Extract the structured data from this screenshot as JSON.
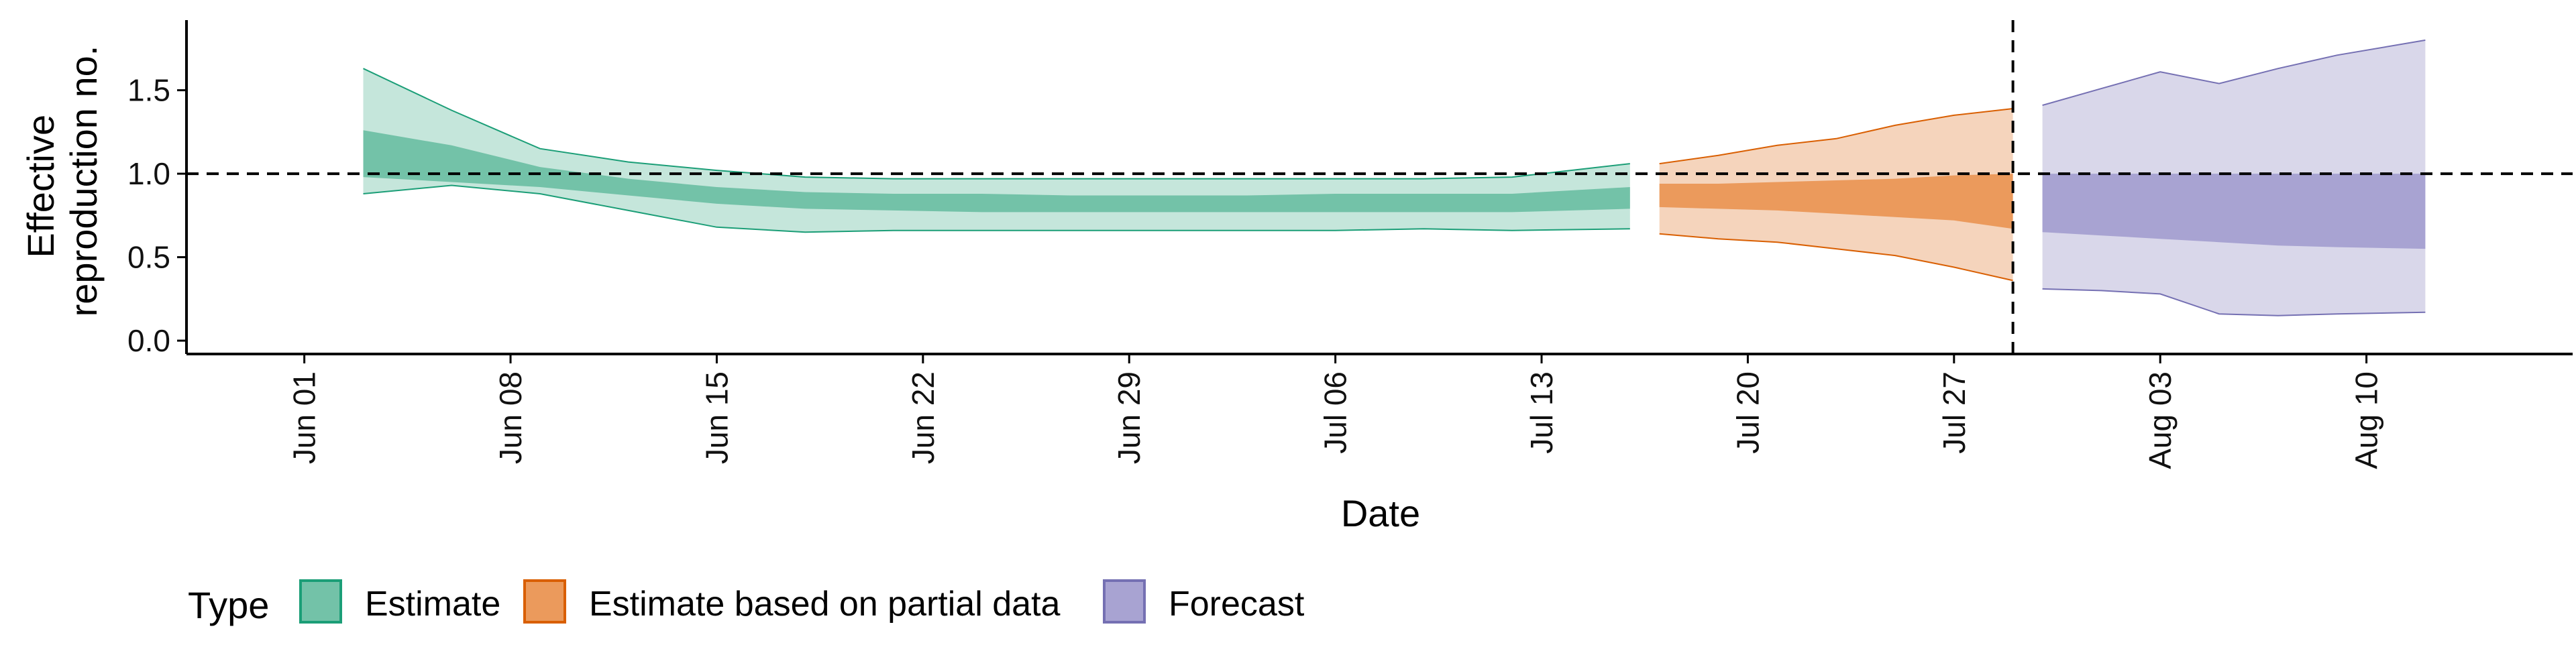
{
  "chart_data": {
    "type": "area",
    "xlabel": "Date",
    "ylabel_lines": [
      "Effective",
      "reproduction no."
    ],
    "y_ticks": [
      0.0,
      0.5,
      1.0,
      1.5
    ],
    "y_tick_labels": [
      "0.0",
      "0.5",
      "1.0",
      "1.5"
    ],
    "ylim": [
      -0.08,
      1.92
    ],
    "x_range": [
      "2020-05-28",
      "2020-08-17"
    ],
    "x_ticks": [
      "2020-06-01",
      "2020-06-08",
      "2020-06-15",
      "2020-06-22",
      "2020-06-29",
      "2020-07-06",
      "2020-07-13",
      "2020-07-20",
      "2020-07-27",
      "2020-08-03",
      "2020-08-10"
    ],
    "x_tick_labels": [
      "Jun 01",
      "Jun 08",
      "Jun 15",
      "Jun 22",
      "Jun 29",
      "Jul 06",
      "Jul 13",
      "Jul 20",
      "Jul 27",
      "Aug 03",
      "Aug 10"
    ],
    "reference_hline": 1.0,
    "reference_vline": "2020-07-29",
    "legend": {
      "title": "Type",
      "entries": [
        {
          "label": "Estimate",
          "fill": "#73c2a8",
          "stroke": "#1b9e77"
        },
        {
          "label": "Estimate based on partial data",
          "fill": "#eb9a5c",
          "stroke": "#d95f02"
        },
        {
          "label": "Forecast",
          "fill": "#a8a3d2",
          "stroke": "#7570b3"
        }
      ]
    },
    "series": [
      {
        "name": "Estimate",
        "outer_fill": "#c5e6db",
        "inner_fill": "#73c2a8",
        "stroke": "#1b9e77",
        "dates": [
          "2020-06-03",
          "2020-06-06",
          "2020-06-09",
          "2020-06-12",
          "2020-06-15",
          "2020-06-18",
          "2020-06-21",
          "2020-06-24",
          "2020-06-27",
          "2020-06-30",
          "2020-07-03",
          "2020-07-06",
          "2020-07-09",
          "2020-07-12",
          "2020-07-16"
        ],
        "upper90": [
          1.63,
          1.38,
          1.15,
          1.07,
          1.02,
          0.98,
          0.97,
          0.97,
          0.97,
          0.97,
          0.97,
          0.97,
          0.97,
          0.98,
          1.06
        ],
        "upper50": [
          1.26,
          1.17,
          1.04,
          0.97,
          0.92,
          0.89,
          0.88,
          0.88,
          0.87,
          0.87,
          0.87,
          0.88,
          0.88,
          0.88,
          0.92
        ],
        "lower50": [
          0.98,
          0.95,
          0.92,
          0.87,
          0.82,
          0.79,
          0.78,
          0.77,
          0.77,
          0.77,
          0.77,
          0.77,
          0.77,
          0.77,
          0.79
        ],
        "lower90": [
          0.88,
          0.93,
          0.88,
          0.78,
          0.68,
          0.65,
          0.66,
          0.66,
          0.66,
          0.66,
          0.66,
          0.66,
          0.67,
          0.66,
          0.67
        ]
      },
      {
        "name": "Estimate based on partial data",
        "outer_fill": "#f5d4bc",
        "inner_fill": "#eb9a5c",
        "stroke": "#d95f02",
        "dates": [
          "2020-07-17",
          "2020-07-19",
          "2020-07-21",
          "2020-07-23",
          "2020-07-25",
          "2020-07-27",
          "2020-07-29"
        ],
        "upper90": [
          1.06,
          1.11,
          1.17,
          1.21,
          1.29,
          1.35,
          1.39
        ],
        "upper50": [
          0.94,
          0.94,
          0.95,
          0.96,
          0.97,
          0.99,
          1.0
        ],
        "lower50": [
          0.8,
          0.79,
          0.78,
          0.76,
          0.74,
          0.72,
          0.67
        ],
        "lower90": [
          0.64,
          0.61,
          0.59,
          0.55,
          0.51,
          0.44,
          0.36
        ]
      },
      {
        "name": "Forecast",
        "outer_fill": "#d9d7ea",
        "inner_fill": "#a8a3d2",
        "stroke": "#7570b3",
        "dates": [
          "2020-07-30",
          "2020-08-01",
          "2020-08-03",
          "2020-08-05",
          "2020-08-07",
          "2020-08-09",
          "2020-08-12"
        ],
        "upper90": [
          1.41,
          1.51,
          1.61,
          1.54,
          1.63,
          1.71,
          1.8
        ],
        "upper50": [
          1.0,
          1.0,
          1.0,
          1.0,
          1.0,
          1.0,
          1.0
        ],
        "lower50": [
          0.65,
          0.63,
          0.61,
          0.59,
          0.57,
          0.56,
          0.55
        ],
        "lower90": [
          0.31,
          0.3,
          0.28,
          0.16,
          0.15,
          0.16,
          0.17
        ]
      }
    ]
  }
}
